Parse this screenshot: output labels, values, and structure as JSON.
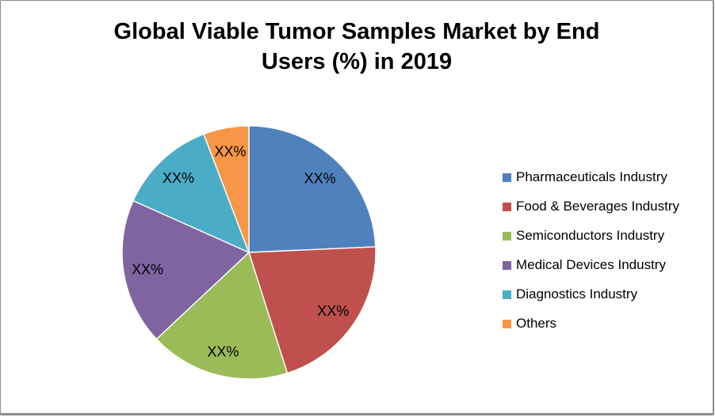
{
  "page": {
    "background_color": "#FFFFFF",
    "frame_border_color": "#8C8C8C"
  },
  "chart_data": {
    "type": "pie",
    "title": "Global Viable Tumor Samples Market by End Users (%) in 2019",
    "title_lines": [
      "Global Viable Tumor Samples Market by End",
      "Users (%) in 2019"
    ],
    "legend_position": "right",
    "data_label_text": "XX%",
    "start_angle_deg": 0,
    "direction": "clockwise",
    "slices": [
      {
        "name": "Pharmaceuticals Industry",
        "label": "XX%",
        "value_pct_est": 24.3,
        "color": "#4F81BD"
      },
      {
        "name": "Food & Beverages Industry",
        "label": "XX%",
        "value_pct_est": 20.8,
        "color": "#C0504D"
      },
      {
        "name": "Semiconductors Industry",
        "label": "XX%",
        "value_pct_est": 17.9,
        "color": "#9BBB59"
      },
      {
        "name": "Medical Devices Industry",
        "label": "XX%",
        "value_pct_est": 18.7,
        "color": "#8064A2"
      },
      {
        "name": "Diagnostics Industry",
        "label": "XX%",
        "value_pct_est": 12.5,
        "color": "#4BACC6"
      },
      {
        "name": "Others",
        "label": "XX%",
        "value_pct_est": 5.8,
        "color": "#F79646"
      }
    ]
  }
}
